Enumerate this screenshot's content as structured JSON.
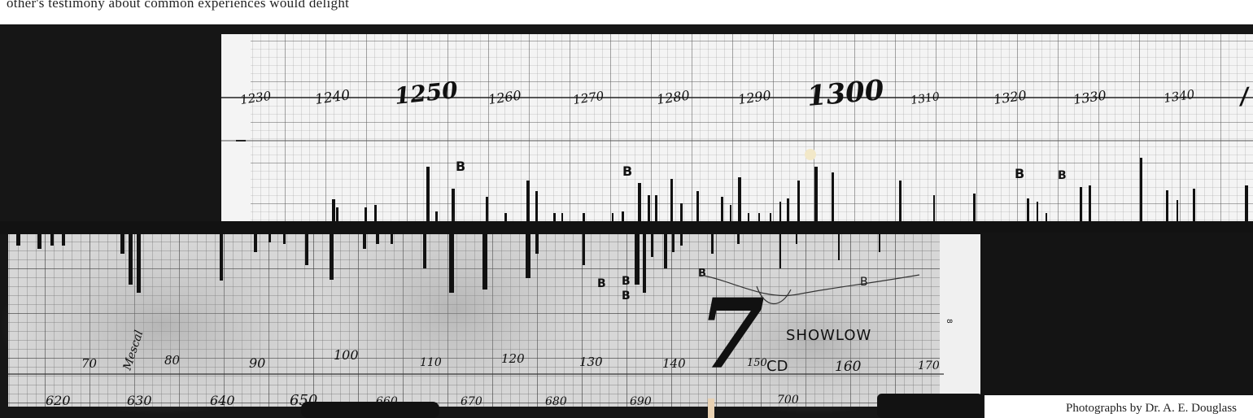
{
  "top_text": "other's testimony about common experiences would delight",
  "credit": "Photographs by Dr. A. E. Douglass",
  "upper_chart": {
    "year_labels": [
      "1230",
      "1240",
      "1250",
      "1260",
      "1270",
      "1280",
      "1290",
      "1300",
      "1310",
      "1320",
      "1330",
      "1340"
    ]
  },
  "lower_chart": {
    "year_labels_upper": [
      "70",
      "80",
      "90",
      "100",
      "110",
      "120",
      "130",
      "140",
      "150",
      "160",
      "170"
    ],
    "year_labels_lower": [
      "620",
      "630",
      "640",
      "650",
      "660",
      "670",
      "680",
      "690",
      "700"
    ],
    "marks": {
      "b1": "B",
      "b2": "B",
      "b3": "B",
      "b4": "B",
      "b5": "B",
      "b6": "B",
      "b7": "B",
      "b8": "B",
      "b9": "B"
    },
    "big_number": "7",
    "site_label": "SHOWLOW",
    "code": "CD",
    "vertical_note": "Mescal",
    "small_mark": "8"
  }
}
